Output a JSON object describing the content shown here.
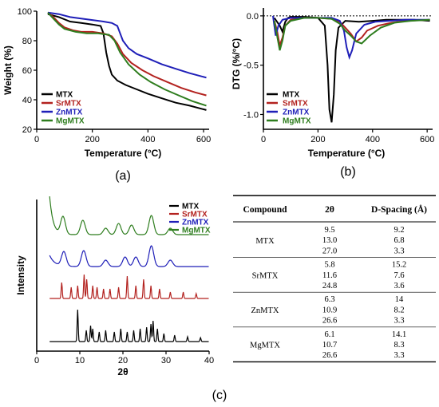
{
  "colors": {
    "MTX": "#000000",
    "SrMTX": "#b3221f",
    "ZnMTX": "#1f1fb8",
    "MgMTX": "#2e7d1e"
  },
  "panel_labels": {
    "a": "(a)",
    "b": "(b)",
    "c": "(c)"
  },
  "chart_data": [
    {
      "id": "a",
      "type": "line",
      "xlabel": "Temperature (°C)",
      "ylabel": "Weight (%)",
      "xlim": [
        0,
        620
      ],
      "ylim": [
        20,
        100
      ],
      "xticks": [
        "0",
        "200",
        "400",
        "600"
      ],
      "yticks": [
        "20",
        "40",
        "60",
        "80",
        "100"
      ],
      "legend_position": "bottom-left",
      "series": [
        {
          "name": "MTX",
          "color_key": "MTX",
          "x": [
            40,
            80,
            120,
            160,
            200,
            230,
            240,
            250,
            260,
            270,
            290,
            320,
            360,
            400,
            450,
            500,
            550,
            610
          ],
          "y": [
            98,
            96,
            93,
            92,
            91,
            90,
            85,
            72,
            63,
            57,
            53,
            50,
            47,
            44,
            41,
            38,
            36,
            33
          ]
        },
        {
          "name": "SrMTX",
          "color_key": "SrMTX",
          "x": [
            40,
            60,
            80,
            100,
            130,
            160,
            200,
            240,
            270,
            290,
            310,
            340,
            380,
            420,
            470,
            520,
            570,
            610
          ],
          "y": [
            99,
            96,
            92,
            89,
            87,
            86,
            86,
            85,
            83,
            78,
            71,
            65,
            60,
            56,
            52,
            48,
            45,
            43
          ]
        },
        {
          "name": "ZnMTX",
          "color_key": "ZnMTX",
          "x": [
            40,
            80,
            120,
            160,
            200,
            240,
            270,
            290,
            300,
            310,
            330,
            360,
            400,
            450,
            500,
            550,
            610
          ],
          "y": [
            99,
            98,
            96,
            95,
            94,
            93,
            92,
            90,
            85,
            80,
            75,
            71,
            68,
            64,
            61,
            58,
            55
          ]
        },
        {
          "name": "MgMTX",
          "color_key": "MgMTX",
          "x": [
            40,
            60,
            80,
            100,
            140,
            180,
            220,
            260,
            280,
            300,
            330,
            370,
            410,
            460,
            510,
            560,
            610
          ],
          "y": [
            99,
            95,
            91,
            88,
            86,
            85,
            85,
            84,
            80,
            72,
            64,
            57,
            52,
            47,
            43,
            39,
            36
          ]
        }
      ]
    },
    {
      "id": "b",
      "type": "line",
      "xlabel": "Temperature (°C)",
      "ylabel": "DTG (%/°C)",
      "xlim": [
        0,
        620
      ],
      "ylim": [
        -1.15,
        0.08
      ],
      "xticks": [
        "0",
        "200",
        "400",
        "600"
      ],
      "yticks": [
        "0.0",
        "-0.5",
        "-1.0"
      ],
      "ytick_values": [
        0,
        -0.5,
        -1.0
      ],
      "reference_line": 0,
      "legend_position": "bottom-left",
      "series": [
        {
          "name": "MTX",
          "color_key": "MTX",
          "x": [
            40,
            60,
            70,
            80,
            90,
            100,
            150,
            200,
            225,
            235,
            242,
            250,
            258,
            265,
            275,
            300,
            350,
            400,
            450,
            500,
            550,
            610
          ],
          "y": [
            -0.02,
            -0.1,
            -0.16,
            -0.06,
            -0.02,
            -0.01,
            -0.01,
            -0.02,
            -0.1,
            -0.5,
            -0.95,
            -1.08,
            -0.8,
            -0.35,
            -0.12,
            -0.05,
            -0.06,
            -0.05,
            -0.04,
            -0.04,
            -0.04,
            -0.05
          ]
        },
        {
          "name": "SrMTX",
          "color_key": "SrMTX",
          "x": [
            40,
            50,
            60,
            70,
            80,
            100,
            140,
            200,
            250,
            280,
            300,
            320,
            340,
            360,
            380,
            420,
            470,
            520,
            610
          ],
          "y": [
            -0.05,
            -0.15,
            -0.3,
            -0.22,
            -0.1,
            -0.04,
            -0.02,
            -0.02,
            -0.03,
            -0.06,
            -0.12,
            -0.18,
            -0.26,
            -0.22,
            -0.15,
            -0.1,
            -0.07,
            -0.05,
            -0.04
          ]
        },
        {
          "name": "ZnMTX",
          "color_key": "ZnMTX",
          "x": [
            35,
            40,
            45,
            55,
            70,
            100,
            150,
            200,
            250,
            280,
            295,
            305,
            315,
            325,
            340,
            370,
            410,
            460,
            520,
            610
          ],
          "y": [
            0.0,
            -0.1,
            -0.2,
            -0.1,
            -0.04,
            -0.02,
            -0.02,
            -0.02,
            -0.02,
            -0.05,
            -0.15,
            -0.32,
            -0.42,
            -0.35,
            -0.18,
            -0.09,
            -0.06,
            -0.05,
            -0.04,
            -0.04
          ]
        },
        {
          "name": "MgMTX",
          "color_key": "MgMTX",
          "x": [
            40,
            50,
            60,
            70,
            80,
            100,
            150,
            200,
            250,
            280,
            300,
            320,
            340,
            360,
            390,
            430,
            480,
            540,
            610
          ],
          "y": [
            -0.05,
            -0.2,
            -0.35,
            -0.25,
            -0.1,
            -0.05,
            -0.02,
            -0.02,
            -0.03,
            -0.08,
            -0.15,
            -0.2,
            -0.26,
            -0.28,
            -0.2,
            -0.12,
            -0.07,
            -0.05,
            -0.04
          ]
        }
      ]
    },
    {
      "id": "c",
      "type": "line",
      "xlabel": "2θ",
      "ylabel": "Intensity",
      "xlim": [
        0,
        40
      ],
      "xticks": [
        "0",
        "10",
        "20",
        "30",
        "40"
      ],
      "legend_position": "top-right",
      "series": [
        {
          "name": "MTX",
          "color_key": "MTX",
          "baseline": 0.1,
          "amplitude": 1.0,
          "peaks": [
            [
              9.5,
              1.0
            ],
            [
              11.5,
              0.35
            ],
            [
              12.5,
              0.5
            ],
            [
              13.0,
              0.4
            ],
            [
              14.5,
              0.3
            ],
            [
              16.0,
              0.35
            ],
            [
              18.0,
              0.3
            ],
            [
              19.5,
              0.4
            ],
            [
              21.0,
              0.3
            ],
            [
              22.5,
              0.35
            ],
            [
              24.0,
              0.4
            ],
            [
              25.5,
              0.45
            ],
            [
              26.5,
              0.55
            ],
            [
              27.0,
              0.65
            ],
            [
              28.0,
              0.4
            ],
            [
              29.5,
              0.25
            ],
            [
              32.0,
              0.2
            ],
            [
              35.0,
              0.15
            ],
            [
              38.0,
              0.12
            ]
          ]
        },
        {
          "name": "SrMTX",
          "color_key": "SrMTX",
          "baseline": 1.45,
          "amplitude": 1.0,
          "peaks": [
            [
              5.8,
              0.5
            ],
            [
              8.0,
              0.35
            ],
            [
              9.5,
              0.4
            ],
            [
              11.0,
              0.75
            ],
            [
              11.6,
              0.6
            ],
            [
              13.0,
              0.4
            ],
            [
              14.0,
              0.35
            ],
            [
              15.5,
              0.3
            ],
            [
              17.0,
              0.3
            ],
            [
              19.0,
              0.35
            ],
            [
              21.0,
              0.7
            ],
            [
              23.0,
              0.4
            ],
            [
              24.8,
              0.6
            ],
            [
              26.5,
              0.4
            ],
            [
              28.5,
              0.3
            ],
            [
              31.0,
              0.2
            ],
            [
              34.0,
              0.2
            ],
            [
              37.0,
              0.15
            ]
          ]
        },
        {
          "name": "ZnMTX",
          "color_key": "ZnMTX",
          "baseline": 2.45,
          "amplitude": 1.0,
          "peaks": [
            [
              6.3,
              0.45
            ],
            [
              10.9,
              0.5
            ],
            [
              16.0,
              0.2
            ],
            [
              20.5,
              0.3
            ],
            [
              23.0,
              0.3
            ],
            [
              26.6,
              0.65
            ],
            [
              31.0,
              0.2
            ]
          ]
        },
        {
          "name": "MgMTX",
          "color_key": "MgMTX",
          "baseline": 3.45,
          "amplitude": 1.0,
          "peaks": [
            [
              6.1,
              0.55
            ],
            [
              10.7,
              0.45
            ],
            [
              16.0,
              0.2
            ],
            [
              19.0,
              0.35
            ],
            [
              22.0,
              0.3
            ],
            [
              26.6,
              0.6
            ],
            [
              31.0,
              0.2
            ]
          ]
        }
      ]
    }
  ],
  "table": {
    "headers": [
      "Compound",
      "2θ",
      "D-Spacing (Å)"
    ],
    "groups": [
      {
        "compound": "MTX",
        "color_key": "MTX",
        "rows": [
          [
            "9.5",
            "9.2"
          ],
          [
            "13.0",
            "6.8"
          ],
          [
            "27.0",
            "3.3"
          ]
        ]
      },
      {
        "compound": "SrMTX",
        "color_key": "SrMTX",
        "rows": [
          [
            "5.8",
            "15.2"
          ],
          [
            "11.6",
            "7.6"
          ],
          [
            "24.8",
            "3.6"
          ]
        ]
      },
      {
        "compound": "ZnMTX",
        "color_key": "ZnMTX",
        "rows": [
          [
            "6.3",
            "14"
          ],
          [
            "10.9",
            "8.2"
          ],
          [
            "26.6",
            "3.3"
          ]
        ]
      },
      {
        "compound": "MgMTX",
        "color_key": "MgMTX",
        "rows": [
          [
            "6.1",
            "14.1"
          ],
          [
            "10.7",
            "8.3"
          ],
          [
            "26.6",
            "3.3"
          ]
        ]
      }
    ]
  }
}
